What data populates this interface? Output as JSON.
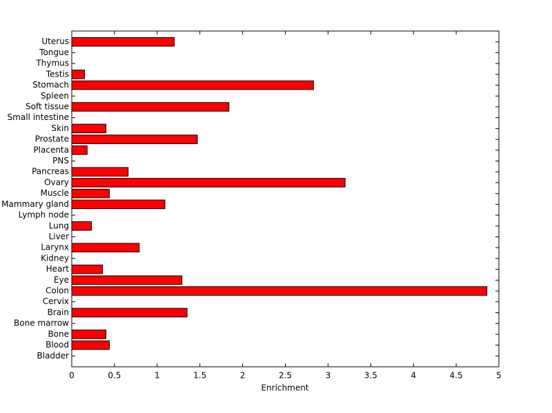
{
  "chart_data": {
    "type": "barh",
    "xlabel": "Enrichment",
    "categories": [
      "Bladder",
      "Blood",
      "Bone",
      "Bone marrow",
      "Brain",
      "Cervix",
      "Colon",
      "Eye",
      "Heart",
      "Kidney",
      "Larynx",
      "Liver",
      "Lung",
      "Lymph node",
      "Mammary gland",
      "Muscle",
      "Ovary",
      "Pancreas",
      "PNS",
      "Placenta",
      "Prostate",
      "Skin",
      "Small intestine",
      "Soft tissue",
      "Spleen",
      "Stomach",
      "Testis",
      "Thymus",
      "Tongue",
      "Uterus"
    ],
    "values": [
      0,
      0.44,
      0.4,
      0,
      1.35,
      0,
      4.86,
      1.29,
      0.36,
      0,
      0.79,
      0,
      0.23,
      0,
      1.09,
      0.44,
      3.2,
      0.66,
      0,
      0.18,
      1.47,
      0.4,
      0,
      1.84,
      0,
      2.83,
      0.15,
      0,
      0,
      1.2
    ],
    "color": "#ff0000",
    "xlim": [
      0,
      5
    ],
    "xticks": [
      0,
      0.5,
      1,
      1.5,
      2,
      2.5,
      3,
      3.5,
      4,
      4.5,
      5
    ]
  }
}
